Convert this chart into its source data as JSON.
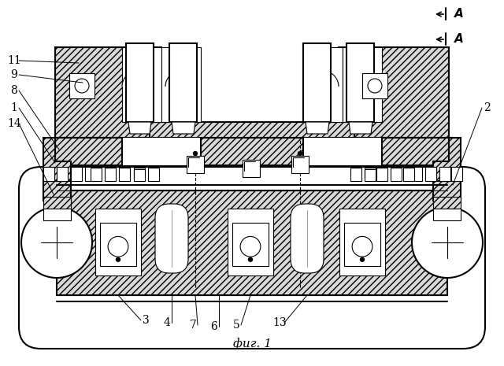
{
  "title": "фиг. 1",
  "background_color": "#ffffff",
  "line_color": "#000000",
  "lw_main": 1.5,
  "lw_thin": 0.8,
  "hatch": "////",
  "hatch_color": "#aaaaaa"
}
